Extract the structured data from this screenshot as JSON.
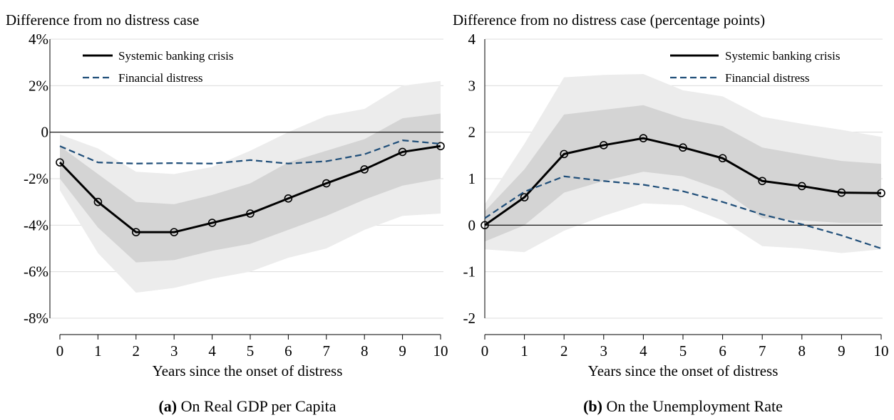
{
  "chart_data": [
    {
      "type": "line",
      "title": "Difference from no distress case",
      "xlabel": "Years since the onset of distress",
      "caption_label": "(a)",
      "caption_text": " On Real GDP per Capita",
      "x": [
        0,
        1,
        2,
        3,
        4,
        5,
        6,
        7,
        8,
        9,
        10
      ],
      "xticks": [
        "0",
        "1",
        "2",
        "3",
        "4",
        "5",
        "6",
        "7",
        "8",
        "9",
        "10"
      ],
      "ylim": [
        -8,
        4
      ],
      "yticks": [
        4,
        2,
        0,
        -2,
        -4,
        -6,
        -8
      ],
      "yticklabels": [
        "4%",
        "2%",
        "0",
        "-2%",
        "-4%",
        "-6%",
        "-8%"
      ],
      "series": [
        {
          "name": "Systemic banking crisis",
          "style": "solid-markers",
          "color": "#000000",
          "values": [
            -1.3,
            -3.0,
            -4.3,
            -4.3,
            -3.9,
            -3.5,
            -2.85,
            -2.2,
            -1.6,
            -0.85,
            -0.6
          ]
        },
        {
          "name": "Financial distress",
          "style": "dashed",
          "color": "#1f4e79",
          "values": [
            -0.6,
            -1.3,
            -1.35,
            -1.33,
            -1.35,
            -1.2,
            -1.35,
            -1.25,
            -0.95,
            -0.35,
            -0.5
          ]
        }
      ],
      "bands": [
        {
          "level": "outer",
          "color": "#ececec",
          "upper": [
            -0.1,
            -0.7,
            -1.7,
            -1.8,
            -1.5,
            -0.8,
            0.0,
            0.7,
            1.0,
            2.0,
            2.2
          ],
          "lower": [
            -2.5,
            -5.2,
            -6.9,
            -6.7,
            -6.3,
            -6.0,
            -5.4,
            -5.0,
            -4.2,
            -3.6,
            -3.5
          ]
        },
        {
          "level": "inner",
          "color": "#d4d4d4",
          "upper": [
            -0.6,
            -1.8,
            -3.0,
            -3.1,
            -2.7,
            -2.2,
            -1.3,
            -0.8,
            -0.3,
            0.6,
            0.8
          ],
          "lower": [
            -2.0,
            -4.1,
            -5.6,
            -5.5,
            -5.1,
            -4.8,
            -4.2,
            -3.6,
            -2.9,
            -2.3,
            -2.0
          ]
        }
      ],
      "legend_position": "top-left"
    },
    {
      "type": "line",
      "title": "Difference from no distress case (percentage points)",
      "xlabel": "Years since the onset of distress",
      "caption_label": "(b)",
      "caption_text": " On the Unemployment Rate",
      "x": [
        0,
        1,
        2,
        3,
        4,
        5,
        6,
        7,
        8,
        9,
        10
      ],
      "xticks": [
        "0",
        "1",
        "2",
        "3",
        "4",
        "5",
        "6",
        "7",
        "8",
        "9",
        "10"
      ],
      "ylim": [
        -2,
        4
      ],
      "yticks": [
        4,
        3,
        2,
        1,
        0,
        -1,
        -2
      ],
      "yticklabels": [
        "4",
        "3",
        "2",
        "1",
        "0",
        "-1",
        "-2"
      ],
      "series": [
        {
          "name": "Systemic banking crisis",
          "style": "solid-markers",
          "color": "#000000",
          "values": [
            0.0,
            0.6,
            1.53,
            1.72,
            1.87,
            1.67,
            1.44,
            0.95,
            0.84,
            0.7,
            0.69
          ]
        },
        {
          "name": "Financial distress",
          "style": "dashed",
          "color": "#1f4e79",
          "values": [
            0.15,
            0.72,
            1.05,
            0.95,
            0.87,
            0.73,
            0.5,
            0.23,
            0.02,
            -0.22,
            -0.5
          ]
        }
      ],
      "bands": [
        {
          "level": "outer",
          "color": "#ececec",
          "upper": [
            0.45,
            1.75,
            3.18,
            3.23,
            3.25,
            2.9,
            2.77,
            2.33,
            2.18,
            2.05,
            1.9
          ],
          "lower": [
            -0.52,
            -0.58,
            -0.12,
            0.2,
            0.47,
            0.43,
            0.1,
            -0.45,
            -0.5,
            -0.6,
            -0.52
          ]
        },
        {
          "level": "inner",
          "color": "#d4d4d4",
          "upper": [
            0.3,
            1.2,
            2.38,
            2.48,
            2.58,
            2.3,
            2.13,
            1.67,
            1.52,
            1.38,
            1.32
          ],
          "lower": [
            -0.35,
            0.0,
            0.7,
            0.95,
            1.15,
            1.05,
            0.75,
            0.15,
            0.1,
            0.05,
            0.05
          ]
        }
      ],
      "legend_position": "top-right"
    }
  ]
}
